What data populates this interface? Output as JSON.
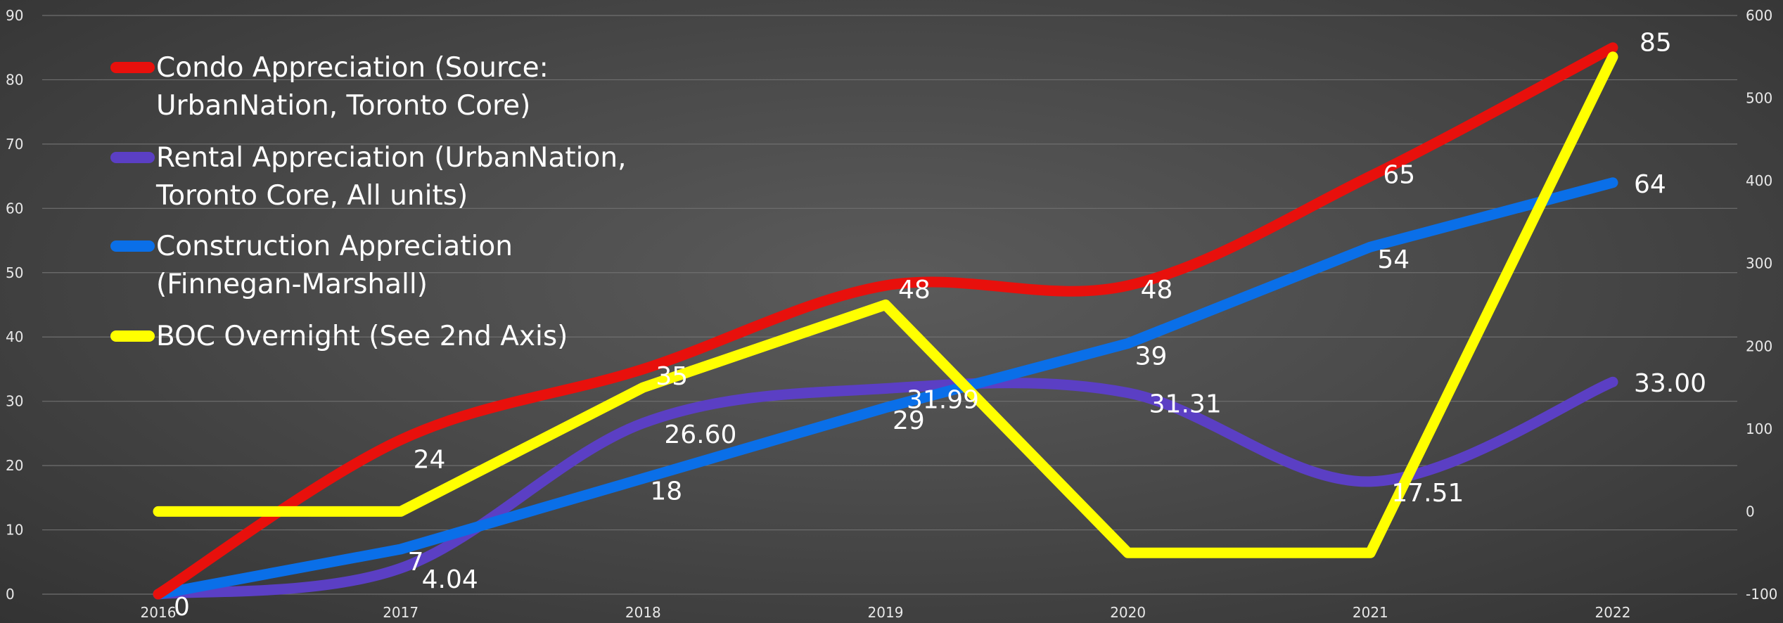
{
  "chart_data": {
    "type": "line",
    "categories": [
      "2016",
      "2017",
      "2018",
      "2019",
      "2020",
      "2021",
      "2022"
    ],
    "y_left": {
      "min": 0,
      "max": 90,
      "ticks": [
        "0",
        "10",
        "20",
        "30",
        "40",
        "50",
        "60",
        "70",
        "80",
        "90"
      ]
    },
    "y_right": {
      "min": -100,
      "max": 600,
      "ticks": [
        "-100",
        "0",
        "100",
        "200",
        "300",
        "400",
        "500",
        "600"
      ]
    },
    "grid": true,
    "legend_position": "top-left",
    "series": [
      {
        "name_lines": [
          "Condo Appreciation (Source:",
          "UrbanNation, Toronto Core)"
        ],
        "color": "#e8100c",
        "axis": "left",
        "smooth": true,
        "values": [
          0,
          24,
          35,
          48,
          48,
          65,
          85
        ],
        "labels": [
          "",
          "24",
          "35",
          "48",
          "48",
          "65",
          "85"
        ]
      },
      {
        "name_lines": [
          "Rental Appreciation (UrbanNation,",
          "Toronto Core, All units)"
        ],
        "color": "#5b3fc4",
        "axis": "left",
        "smooth": true,
        "values": [
          0,
          4.04,
          26.6,
          31.99,
          31.31,
          17.51,
          33.0
        ],
        "labels": [
          "",
          "4.04",
          "26.60",
          "31.99",
          "31.31",
          "17.51",
          "33.00"
        ]
      },
      {
        "name_lines": [
          "Construction Appreciation",
          "(Finnegan-Marshall)"
        ],
        "color": "#0a6fe8",
        "axis": "left",
        "smooth": false,
        "values": [
          0,
          7,
          18,
          29,
          39,
          54,
          64
        ],
        "labels": [
          "0",
          "7",
          "18",
          "29",
          "39",
          "54",
          "64"
        ]
      },
      {
        "name_lines": [
          "BOC Overnight (See 2nd Axis)"
        ],
        "color": "#ffff00",
        "axis": "right",
        "smooth": false,
        "values": [
          0,
          0,
          150,
          250,
          -50,
          -50,
          550
        ],
        "labels": [
          "",
          "",
          "",
          "",
          "",
          "",
          ""
        ]
      }
    ]
  }
}
